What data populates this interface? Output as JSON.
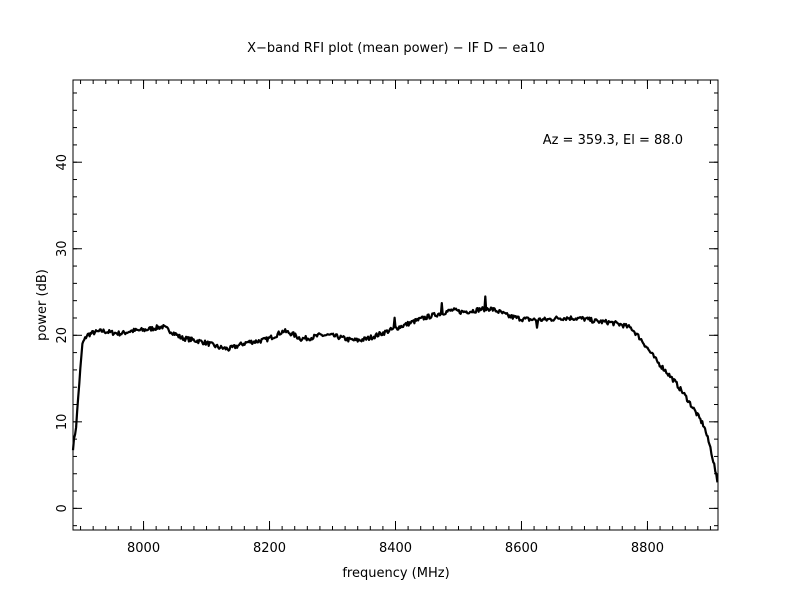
{
  "chart_data": {
    "type": "line",
    "title": "X−band RFI plot (mean power) − IF D − ea10",
    "xlabel": "frequency (MHz)",
    "ylabel": "power (dB)",
    "annotation": "Az = 359.3, El = 88.0",
    "xlim": [
      7888,
      8912
    ],
    "ylim": [
      -2.5,
      49.5
    ],
    "x_ticks": [
      8000,
      8200,
      8400,
      8600,
      8800
    ],
    "y_ticks": [
      0,
      10,
      20,
      30,
      40
    ],
    "grid": false,
    "line_color": "#000000",
    "series": [
      {
        "x": [
          7888,
          7893,
          7898,
          7903,
          7910,
          7920,
          7935,
          7950,
          7965,
          7980,
          8000,
          8015,
          8030,
          8045,
          8060,
          8075,
          8090,
          8105,
          8120,
          8135,
          8150,
          8165,
          8180,
          8195,
          8210,
          8222,
          8235,
          8250,
          8265,
          8280,
          8295,
          8310,
          8325,
          8340,
          8355,
          8370,
          8385,
          8400,
          8415,
          8430,
          8445,
          8460,
          8475,
          8490,
          8505,
          8520,
          8535,
          8550,
          8565,
          8580,
          8600,
          8620,
          8640,
          8660,
          8680,
          8700,
          8720,
          8740,
          8760,
          8775,
          8790,
          8800,
          8815,
          8830,
          8845,
          8860,
          8875,
          8890,
          8900,
          8906,
          8911
        ],
        "y": [
          7.0,
          9.5,
          14.5,
          19.0,
          20.0,
          20.3,
          20.5,
          20.3,
          20.2,
          20.5,
          20.6,
          20.8,
          21.0,
          20.4,
          19.7,
          19.5,
          19.3,
          19.0,
          18.6,
          18.4,
          18.8,
          19.2,
          19.3,
          19.5,
          20.0,
          20.5,
          20.2,
          19.6,
          19.7,
          20.0,
          20.0,
          19.8,
          19.5,
          19.4,
          19.6,
          20.0,
          20.4,
          20.8,
          21.2,
          21.6,
          22.0,
          22.3,
          22.6,
          22.9,
          22.7,
          22.8,
          23.0,
          23.1,
          22.7,
          22.2,
          21.9,
          21.8,
          21.8,
          22.0,
          22.0,
          21.9,
          21.6,
          21.5,
          21.2,
          20.8,
          19.5,
          18.5,
          17.0,
          15.8,
          14.5,
          13.0,
          11.3,
          9.5,
          7.0,
          5.0,
          3.0
        ]
      }
    ]
  }
}
